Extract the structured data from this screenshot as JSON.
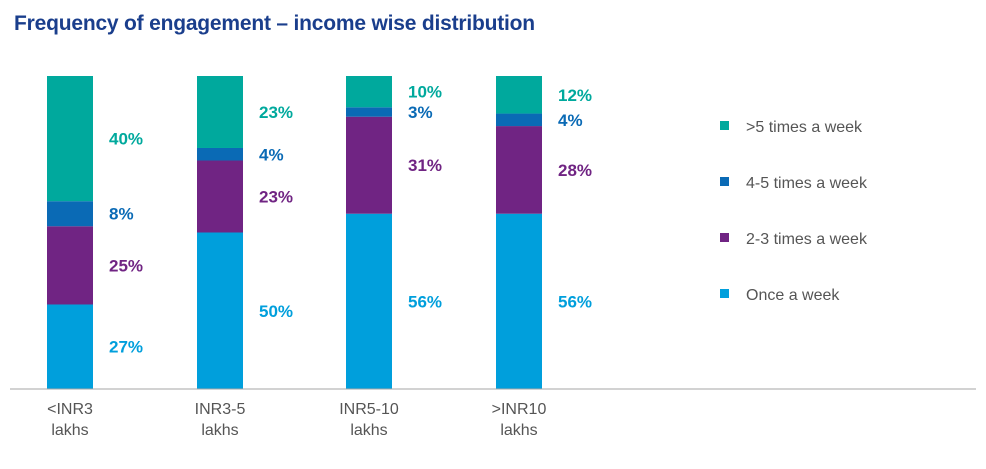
{
  "chart_data": {
    "type": "bar",
    "stacked": true,
    "title": "Frequency of engagement – income wise distribution",
    "categories": [
      [
        "<INR3",
        "lakhs"
      ],
      [
        "INR3-5",
        "lakhs"
      ],
      [
        "INR5-10",
        "lakhs"
      ],
      [
        ">INR10",
        "lakhs"
      ]
    ],
    "series": [
      {
        "name": "Once a week",
        "color": "#009fdc",
        "values": [
          27,
          50,
          56,
          56
        ],
        "labels": [
          "27%",
          "50%",
          "56%",
          "56%"
        ]
      },
      {
        "name": "2-3 times a week",
        "color": "#702483",
        "values": [
          25,
          23,
          31,
          28
        ],
        "labels": [
          "25%",
          "23%",
          "31%",
          "28%"
        ]
      },
      {
        "name": "4-5 times a week",
        "color": "#0a6ab5",
        "values": [
          8,
          4,
          3,
          4
        ],
        "labels": [
          "8%",
          "4%",
          "3%",
          "4%"
        ]
      },
      {
        "name": ">5 times a week",
        "color": "#00a99d",
        "values": [
          40,
          23,
          10,
          12
        ],
        "labels": [
          "40%",
          "23%",
          "10%",
          "12%"
        ]
      }
    ],
    "legend_order": [
      ">5 times a week",
      "4-5 times a week",
      "2-3 times a week",
      "Once a week"
    ],
    "legend_position": "right",
    "ylim": [
      0,
      100
    ],
    "grid": false
  }
}
